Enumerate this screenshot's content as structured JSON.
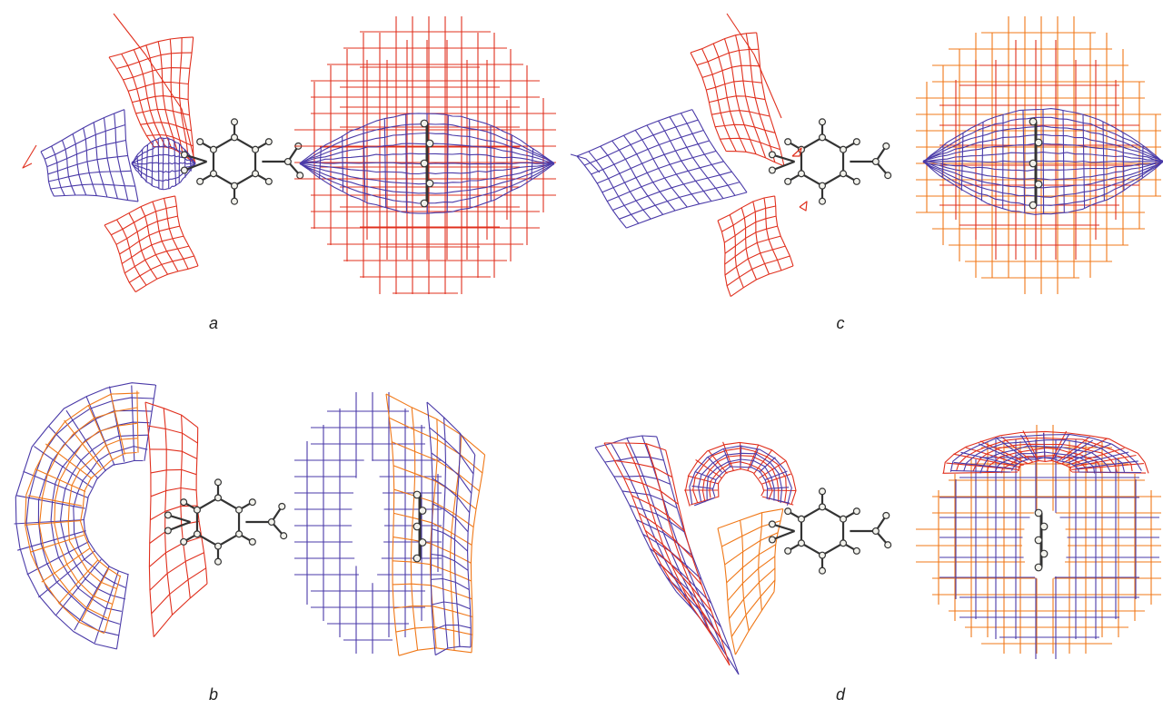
{
  "figure": {
    "panels": [
      {
        "id": "a",
        "label": "a",
        "orientation": "horizontal"
      },
      {
        "id": "b",
        "label": "b",
        "orientation": "front"
      },
      {
        "id": "c",
        "label": "c",
        "orientation": "horizontal"
      },
      {
        "id": "d",
        "label": "d",
        "orientation": "front"
      }
    ],
    "colors": {
      "red_mesh": "#e0301e",
      "orange_mesh": "#f07818",
      "blue_mesh": "#4a3aa8",
      "molecule_bond": "#333333",
      "atom_fill": "#f2f2ec",
      "atom_stroke": "#333333",
      "label_color": "#222222"
    }
  }
}
